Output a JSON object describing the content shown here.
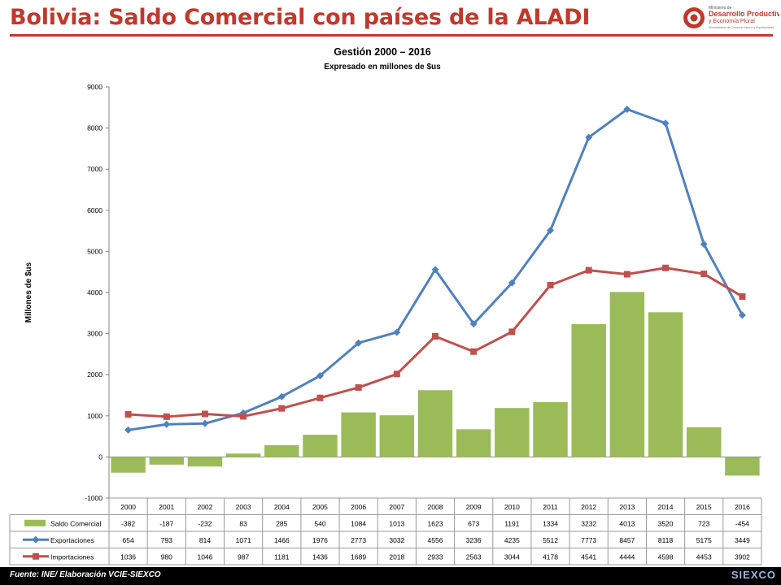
{
  "page": {
    "title": "Bolivia: Saldo Comercial con países de la ALADI",
    "footer": "Fuente: INE/ Elaboración VCIE-SIEXCO",
    "footer_logo": "SIEXCO",
    "logo": {
      "line1": "Ministerio de",
      "line2": "Desarrollo Productivo",
      "line3": "y Economía Plural",
      "line4": "Viceministerio de Comercio Interno y Exportaciones"
    }
  },
  "chart_data": {
    "type": "bar",
    "title": "Gestión 2000 – 2016",
    "subtitle": "Expresado en millones de $us",
    "ylabel": "Millones de $us",
    "xlabel": "",
    "ylim": [
      -1000,
      9000
    ],
    "yticks": [
      -1000,
      0,
      1000,
      2000,
      3000,
      4000,
      5000,
      6000,
      7000,
      8000,
      9000
    ],
    "grid": false,
    "legend": "data-table",
    "categories": [
      "2000",
      "2001",
      "2002",
      "2003",
      "2004",
      "2005",
      "2006",
      "2007",
      "2008",
      "2009",
      "2010",
      "2011",
      "2012",
      "2013",
      "2014",
      "2015",
      "2016"
    ],
    "series": [
      {
        "name": "Saldo Comercial",
        "type": "bar",
        "color": "#9bbb59",
        "values": [
          -382,
          -187,
          -232,
          83,
          285,
          540,
          1084,
          1013,
          1623,
          673,
          1191,
          1334,
          3232,
          4013,
          3520,
          723,
          -454
        ]
      },
      {
        "name": "Exportaciones",
        "type": "line",
        "color": "#4f81bd",
        "marker": "diamond",
        "values": [
          654,
          793,
          814,
          1071,
          1466,
          1976,
          2773,
          3032,
          4556,
          3236,
          4235,
          5512,
          7773,
          8457,
          8118,
          5175,
          3449
        ]
      },
      {
        "name": "Importaciones",
        "type": "line",
        "color": "#c0504d",
        "marker": "square",
        "values": [
          1036,
          980,
          1046,
          987,
          1181,
          1436,
          1689,
          2018,
          2933,
          2563,
          3044,
          4178,
          4541,
          4444,
          4598,
          4453,
          3902
        ]
      }
    ]
  }
}
